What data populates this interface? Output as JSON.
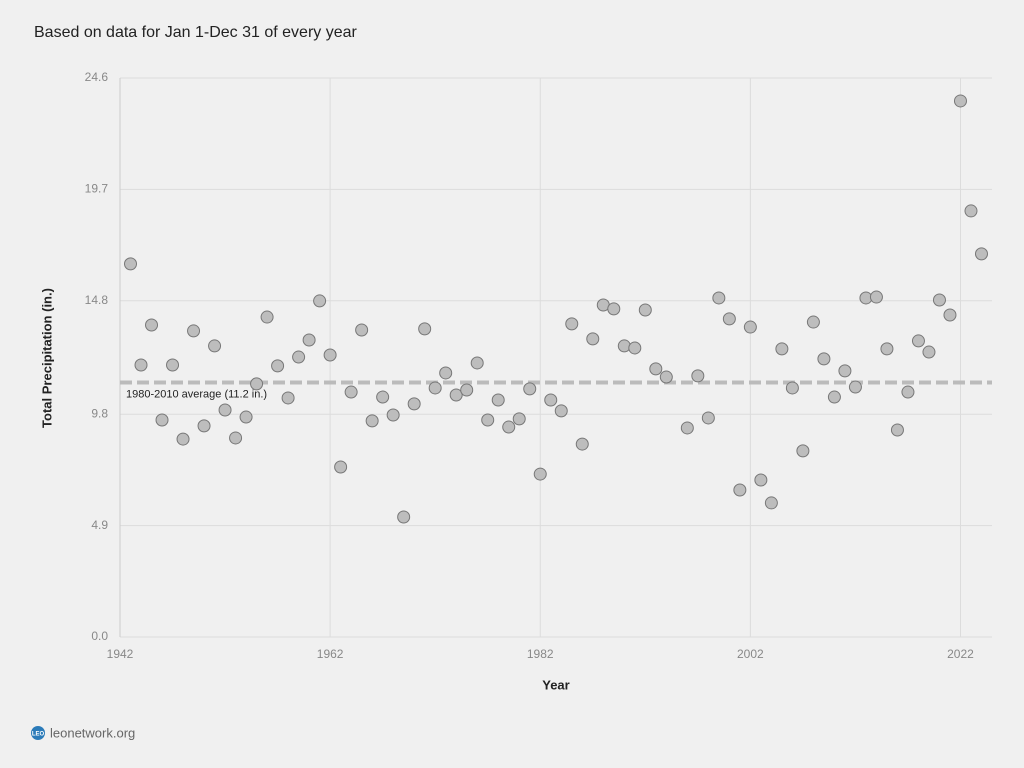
{
  "chart_data": {
    "type": "scatter",
    "title": "Based on data for Jan 1-Dec 31 of every year",
    "x_label": "Year",
    "y_label": "Total Precipitation (in.)",
    "x": [
      1943,
      1944,
      1945,
      1946,
      1947,
      1948,
      1949,
      1950,
      1951,
      1952,
      1953,
      1954,
      1955,
      1956,
      1957,
      1958,
      1959,
      1960,
      1961,
      1962,
      1963,
      1964,
      1965,
      1966,
      1967,
      1968,
      1969,
      1970,
      1971,
      1972,
      1973,
      1974,
      1975,
      1976,
      1977,
      1978,
      1979,
      1980,
      1981,
      1982,
      1983,
      1984,
      1985,
      1986,
      1987,
      1988,
      1989,
      1990,
      1991,
      1992,
      1993,
      1994,
      1996,
      1997,
      1998,
      1999,
      2000,
      2001,
      2002,
      2003,
      2004,
      2005,
      2006,
      2007,
      2008,
      2009,
      2010,
      2011,
      2012,
      2013,
      2014,
      2015,
      2016,
      2017,
      2018,
      2019,
      2020,
      2021,
      2022,
      2023,
      2024
    ],
    "values": [
      16.42,
      11.97,
      13.73,
      9.55,
      11.97,
      8.71,
      13.47,
      9.29,
      12.81,
      9.99,
      8.76,
      9.68,
      11.14,
      14.08,
      11.93,
      10.52,
      12.32,
      13.07,
      14.79,
      12.41,
      7.48,
      10.78,
      13.51,
      9.51,
      10.56,
      9.77,
      5.28,
      10.26,
      13.56,
      10.96,
      11.62,
      10.65,
      10.87,
      12.06,
      9.55,
      10.43,
      9.24,
      9.6,
      10.92,
      7.17,
      10.43,
      9.95,
      13.78,
      8.49,
      13.12,
      14.61,
      14.44,
      12.81,
      12.72,
      14.39,
      11.8,
      11.44,
      9.2,
      11.49,
      9.64,
      14.92,
      14.0,
      6.47,
      13.64,
      6.91,
      5.9,
      12.68,
      10.96,
      8.19,
      13.86,
      12.24,
      10.56,
      11.71,
      11.0,
      14.92,
      14.96,
      12.68,
      9.11,
      10.78,
      13.03,
      12.54,
      14.83,
      14.17,
      23.59,
      18.75,
      16.86
    ],
    "color": "#bdbdbd",
    "xlim": [
      1942,
      2025
    ],
    "xticks": [
      1942,
      1962,
      1982,
      2002,
      2022
    ],
    "ylim": [
      0,
      24.6
    ],
    "yticks": [
      {
        "value": 0,
        "label": "0.0"
      },
      4.9,
      9.8,
      14.8,
      19.7,
      24.6
    ],
    "grid": true,
    "average": {
      "value": 11.2,
      "label": "1980-2010 average (11.2 in.)"
    },
    "logo": "LEO",
    "source": "leonetwork.org"
  }
}
